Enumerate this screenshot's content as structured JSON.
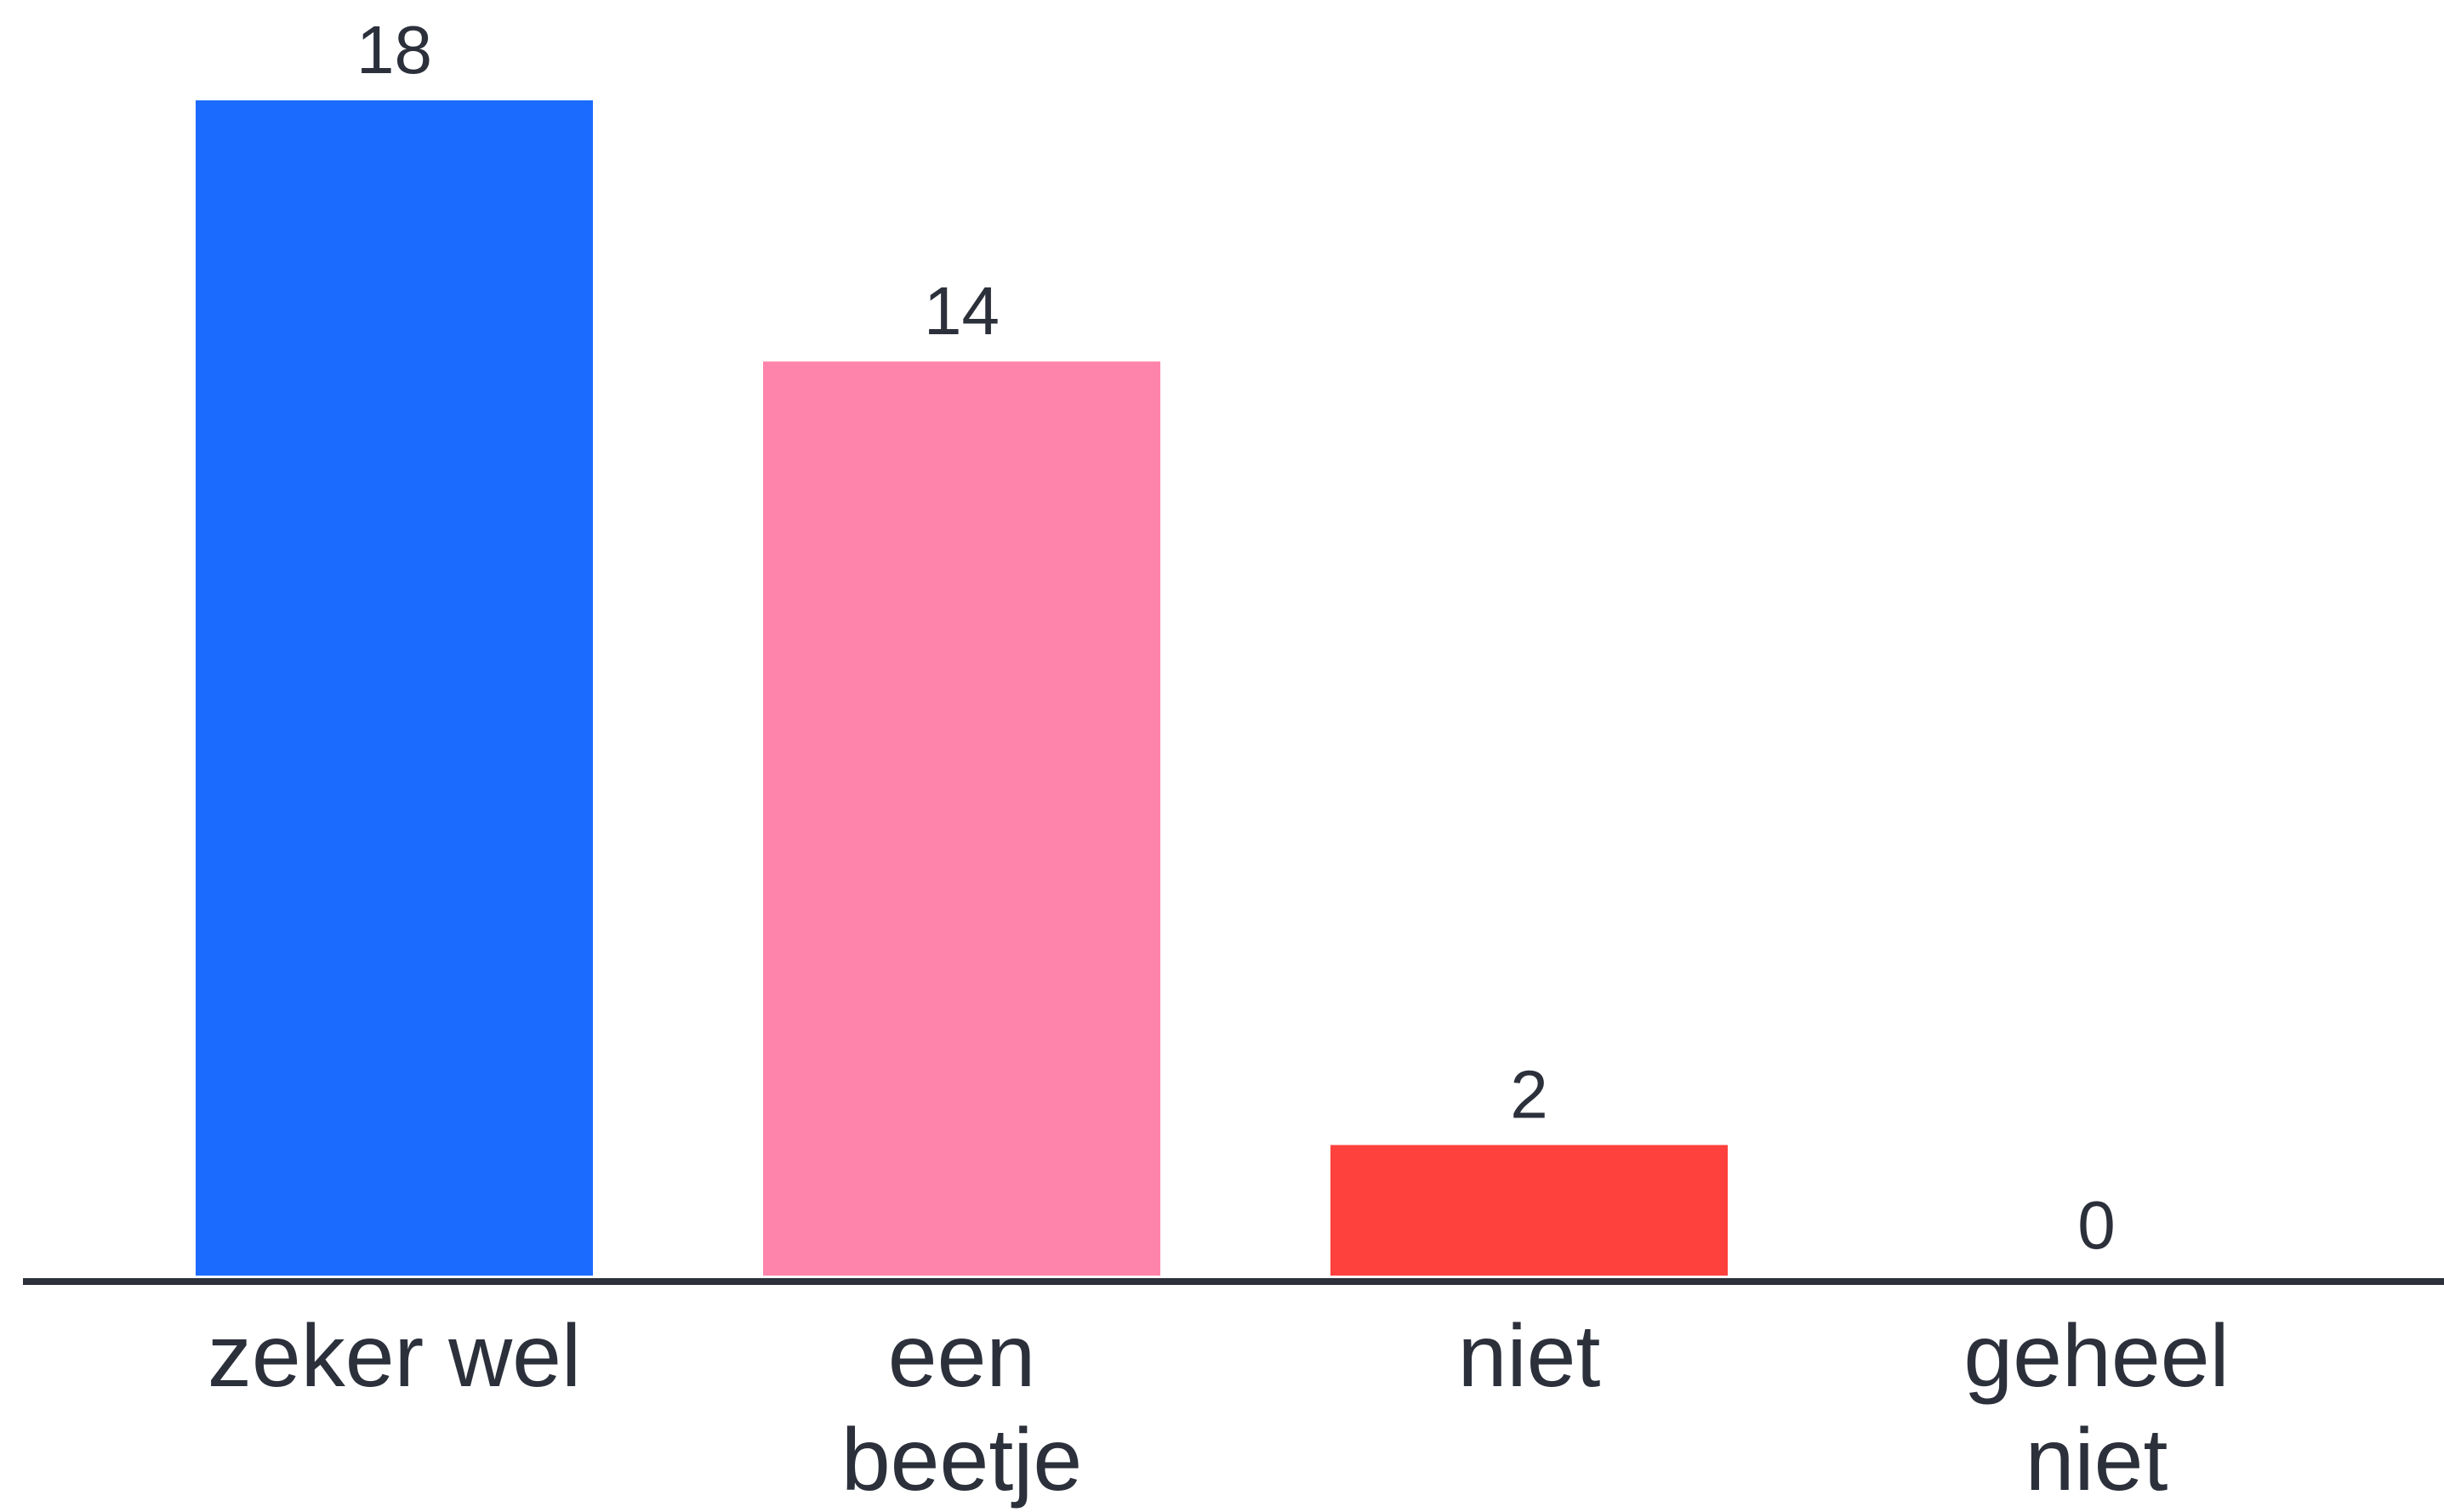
{
  "chart_data": {
    "type": "bar",
    "categories": [
      "zeker wel",
      "een beetje",
      "niet",
      "geheel niet"
    ],
    "category_lines": [
      [
        "zeker wel"
      ],
      [
        "een",
        "beetje"
      ],
      [
        "niet"
      ],
      [
        "geheel",
        "niet"
      ]
    ],
    "values": [
      18,
      14,
      2,
      0
    ],
    "colors": [
      "#1c6bff",
      "#ff84ab",
      "#ff413d",
      "#2b303b"
    ],
    "axis_color": "#2b303b",
    "text_color": "#2b303b",
    "title": "",
    "xlabel": "",
    "ylabel": "",
    "ylim": [
      0,
      18
    ],
    "grid": false,
    "legend": "none"
  }
}
